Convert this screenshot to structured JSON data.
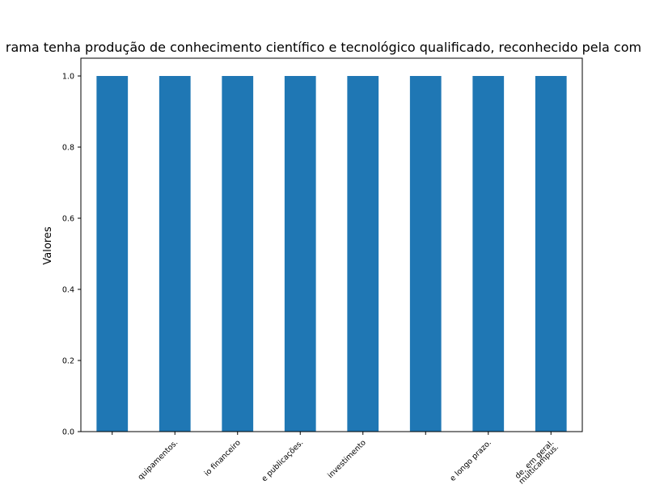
{
  "chart_data": {
    "type": "bar",
    "title": "rama tenha produção de conhecimento científico e tecnológico qualificado, reconhecido pela com",
    "xlabel": "",
    "ylabel": "Valores",
    "categories": [
      "",
      "quipamentos.",
      "io  financeiro",
      "e publicações.",
      "investimento",
      "",
      "e longo prazo.",
      "de, em geral.\nmulticampus."
    ],
    "values": [
      1,
      1,
      1,
      1,
      1,
      1,
      1,
      1
    ],
    "ylim": [
      0,
      1.05
    ],
    "yticks": [
      0.0,
      0.2,
      0.4,
      0.6,
      0.8,
      1.0
    ],
    "ytick_labels": [
      "0.0",
      "0.2",
      "0.4",
      "0.6",
      "0.8",
      "1.0"
    ],
    "bar_color": "#1f77b4",
    "grid": false,
    "legend": "none"
  }
}
